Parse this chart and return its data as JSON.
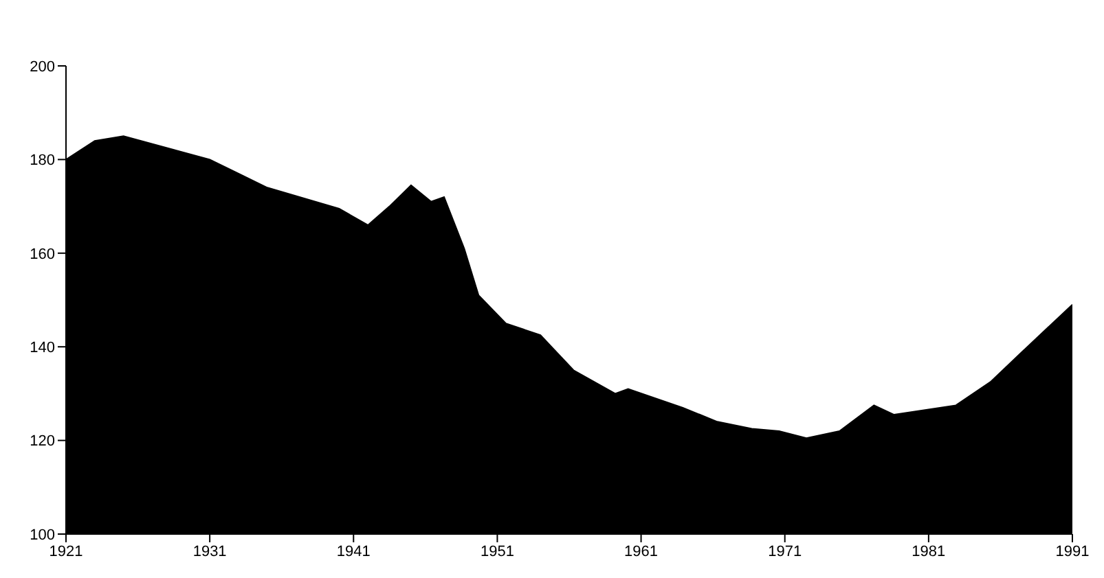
{
  "chart_data": {
    "type": "area",
    "x": [
      1921,
      1923,
      1925,
      1931,
      1935,
      1940,
      1942,
      1943.5,
      1945,
      1946.4,
      1947.3,
      1948.7,
      1949.7,
      1951.6,
      1954,
      1956.3,
      1959.2,
      1960.1,
      1963.9,
      1966.3,
      1968.7,
      1970.6,
      1972.5,
      1974.8,
      1977.2,
      1978.6,
      1982.9,
      1985.3,
      1987.7,
      1991
    ],
    "series": [
      {
        "color": "#000000",
        "values": [
          180,
          184,
          185,
          180,
          174,
          169.5,
          166,
          170,
          174.5,
          171,
          172,
          161,
          151,
          145,
          142.5,
          135,
          130,
          131,
          127,
          124,
          122.5,
          122,
          120.5,
          122,
          127.5,
          125.5,
          127.5,
          132.5,
          139.5,
          149
        ]
      }
    ],
    "xlim": [
      1921,
      1991
    ],
    "xticks": [
      1921,
      1931,
      1941,
      1951,
      1961,
      1971,
      1981,
      1991
    ],
    "ylim": [
      100,
      200
    ],
    "yticks": [
      100,
      120,
      140,
      160,
      180,
      200
    ],
    "grid": false,
    "legend": false
  }
}
